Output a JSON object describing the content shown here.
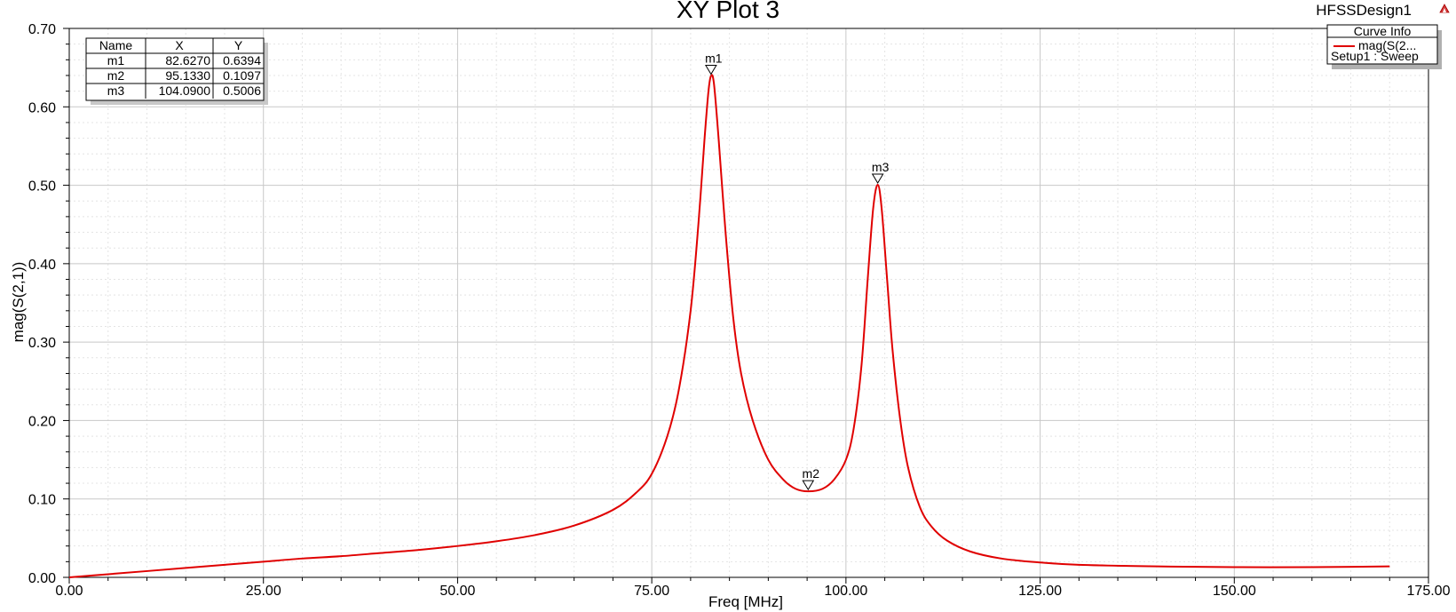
{
  "title": "XY Plot 3",
  "design_name": "HFSSDesign1",
  "chart_data": {
    "type": "line",
    "xlabel": "Freq [MHz]",
    "ylabel": "mag(S(2,1))",
    "xlim": [
      0,
      175
    ],
    "ylim": [
      0,
      0.7
    ],
    "x_ticks": [
      0,
      25,
      50,
      75,
      100,
      125,
      150,
      175
    ],
    "x_tick_labels": [
      "0.00",
      "25.00",
      "50.00",
      "75.00",
      "100.00",
      "125.00",
      "150.00",
      "175.00"
    ],
    "y_ticks": [
      0,
      0.1,
      0.2,
      0.3,
      0.4,
      0.5,
      0.6,
      0.7
    ],
    "y_tick_labels": [
      "0.00",
      "0.10",
      "0.20",
      "0.30",
      "0.40",
      "0.50",
      "0.60",
      "0.70"
    ],
    "grid": true,
    "legend_position": "top-right",
    "series": [
      {
        "name": "mag(S(2...",
        "color": "#e00000",
        "points": [
          [
            0,
            0.0
          ],
          [
            5,
            0.004
          ],
          [
            10,
            0.008
          ],
          [
            15,
            0.012
          ],
          [
            20,
            0.016
          ],
          [
            25,
            0.02
          ],
          [
            30,
            0.024
          ],
          [
            35,
            0.027
          ],
          [
            40,
            0.031
          ],
          [
            45,
            0.035
          ],
          [
            50,
            0.04
          ],
          [
            55,
            0.046
          ],
          [
            60,
            0.054
          ],
          [
            65,
            0.066
          ],
          [
            70,
            0.086
          ],
          [
            73,
            0.108
          ],
          [
            75,
            0.132
          ],
          [
            77,
            0.18
          ],
          [
            78.5,
            0.24
          ],
          [
            80,
            0.34
          ],
          [
            81,
            0.45
          ],
          [
            81.8,
            0.56
          ],
          [
            82.3,
            0.62
          ],
          [
            82.627,
            0.6394
          ],
          [
            83,
            0.63
          ],
          [
            83.6,
            0.56
          ],
          [
            84.5,
            0.44
          ],
          [
            85.5,
            0.33
          ],
          [
            86.5,
            0.26
          ],
          [
            88,
            0.2
          ],
          [
            90,
            0.15
          ],
          [
            92,
            0.124
          ],
          [
            93.5,
            0.113
          ],
          [
            95.133,
            0.1097
          ],
          [
            97,
            0.113
          ],
          [
            98.5,
            0.125
          ],
          [
            100,
            0.15
          ],
          [
            101,
            0.19
          ],
          [
            102,
            0.27
          ],
          [
            102.8,
            0.38
          ],
          [
            103.5,
            0.47
          ],
          [
            104.09,
            0.5006
          ],
          [
            104.6,
            0.47
          ],
          [
            105.3,
            0.38
          ],
          [
            106,
            0.29
          ],
          [
            107,
            0.2
          ],
          [
            108,
            0.14
          ],
          [
            109.5,
            0.09
          ],
          [
            111,
            0.065
          ],
          [
            113,
            0.047
          ],
          [
            116,
            0.033
          ],
          [
            120,
            0.024
          ],
          [
            125,
            0.019
          ],
          [
            130,
            0.016
          ],
          [
            140,
            0.014
          ],
          [
            150,
            0.013
          ],
          [
            160,
            0.013
          ],
          [
            170,
            0.014
          ]
        ]
      }
    ],
    "markers": [
      {
        "name": "m1",
        "x": 82.627,
        "y": 0.6394
      },
      {
        "name": "m2",
        "x": 95.133,
        "y": 0.1097
      },
      {
        "name": "m3",
        "x": 104.09,
        "y": 0.5006
      }
    ]
  },
  "marker_table": {
    "headers": [
      "Name",
      "X",
      "Y"
    ],
    "rows": [
      [
        "m1",
        "82.6270",
        "0.6394"
      ],
      [
        "m2",
        "95.1330",
        "0.1097"
      ],
      [
        "m3",
        "104.0900",
        "0.5006"
      ]
    ]
  },
  "legend": {
    "header": "Curve Info",
    "entry_label": "mag(S(2...",
    "entry_sub": "Setup1 : Sweep"
  }
}
